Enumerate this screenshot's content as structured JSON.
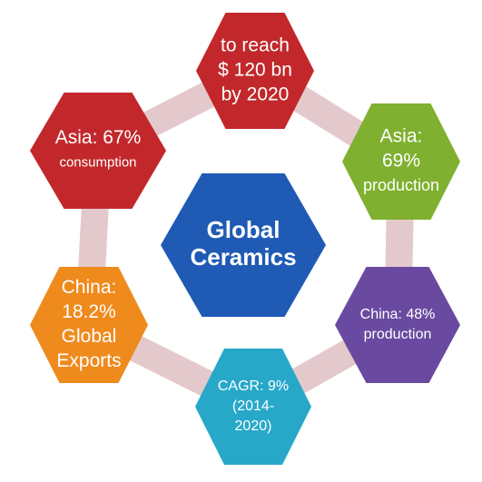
{
  "center": {
    "lines": [
      "Global",
      "Ceramics"
    ],
    "color": "#1f5ab5"
  },
  "hexagons": [
    {
      "id": "market-size",
      "lines": [
        "to reach",
        "$ 120 bn",
        "by 2020"
      ],
      "color": "#c2282b"
    },
    {
      "id": "asia-production",
      "lines": [
        "Asia:",
        "69%",
        "production"
      ],
      "color": "#7fb02f"
    },
    {
      "id": "china-production",
      "lines": [
        "China: 48%",
        "production"
      ],
      "color": "#6a4aa0"
    },
    {
      "id": "cagr",
      "lines": [
        "CAGR: 9%",
        "(2014-",
        "2020)"
      ],
      "color": "#27a8c9"
    },
    {
      "id": "china-exports",
      "lines": [
        "China:",
        "18.2%",
        "Global",
        "Exports"
      ],
      "color": "#ef8a1d"
    },
    {
      "id": "asia-consumption",
      "lines": [
        "Asia: 67%",
        "consumption"
      ],
      "color": "#c2282b"
    }
  ],
  "connector_color": "#e4c9cc"
}
